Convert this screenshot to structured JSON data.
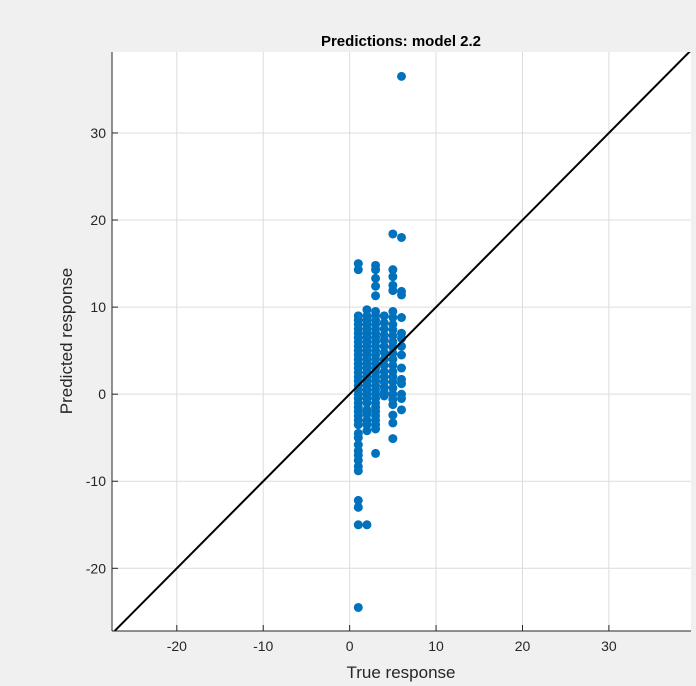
{
  "colors": {
    "figure_bg": "#f0f0f0",
    "axes_bg": "#ffffff",
    "grid": "#dcdcdc",
    "axis": "#262626",
    "marker": "#0072bd",
    "reference_line": "#000000"
  },
  "chart_data": {
    "type": "scatter",
    "title": "Predictions: model 2.2",
    "xlabel": "True response",
    "ylabel": "Predicted response",
    "xlim": [
      -27.5,
      39.5
    ],
    "ylim": [
      -27.2,
      39.3
    ],
    "xticks": [
      -20,
      -10,
      0,
      10,
      20,
      30
    ],
    "yticks": [
      -20,
      -10,
      0,
      10,
      20,
      30
    ],
    "grid": true,
    "reference_line": "y = x",
    "series": [
      {
        "marker_color": "#0072bd",
        "points": [
          [
            1,
            15
          ],
          [
            1,
            14.3
          ],
          [
            1,
            9
          ],
          [
            1,
            8.5
          ],
          [
            1,
            8
          ],
          [
            1,
            7.5
          ],
          [
            1,
            7
          ],
          [
            1,
            6.5
          ],
          [
            1,
            6
          ],
          [
            1,
            5.5
          ],
          [
            1,
            5
          ],
          [
            1,
            4.5
          ],
          [
            1,
            4
          ],
          [
            1,
            3.5
          ],
          [
            1,
            3
          ],
          [
            1,
            2.5
          ],
          [
            1,
            2
          ],
          [
            1,
            1.5
          ],
          [
            1,
            1
          ],
          [
            1,
            0.5
          ],
          [
            1,
            0
          ],
          [
            1,
            -0.5
          ],
          [
            1,
            -1
          ],
          [
            1,
            -1.5
          ],
          [
            1,
            -2
          ],
          [
            1,
            -2.5
          ],
          [
            1,
            -3
          ],
          [
            1,
            -3.5
          ],
          [
            1,
            -4.5
          ],
          [
            1,
            -5
          ],
          [
            1,
            -5.8
          ],
          [
            1,
            -6.5
          ],
          [
            1,
            -7
          ],
          [
            1,
            -7.6
          ],
          [
            1,
            -8.3
          ],
          [
            1,
            -8.8
          ],
          [
            1,
            -12.2
          ],
          [
            1,
            -13
          ],
          [
            1,
            -15
          ],
          [
            1,
            -24.5
          ],
          [
            2,
            9.7
          ],
          [
            2,
            9
          ],
          [
            2,
            8.5
          ],
          [
            2,
            8
          ],
          [
            2,
            7.5
          ],
          [
            2,
            7
          ],
          [
            2,
            6.5
          ],
          [
            2,
            6
          ],
          [
            2,
            5.5
          ],
          [
            2,
            5
          ],
          [
            2,
            4.5
          ],
          [
            2,
            4
          ],
          [
            2,
            3.5
          ],
          [
            2,
            3
          ],
          [
            2,
            2.5
          ],
          [
            2,
            2
          ],
          [
            2,
            1.5
          ],
          [
            2,
            1
          ],
          [
            2,
            0.5
          ],
          [
            2,
            0
          ],
          [
            2,
            -0.5
          ],
          [
            2,
            -1
          ],
          [
            2,
            -1.8
          ],
          [
            2,
            -2.3
          ],
          [
            2,
            -3
          ],
          [
            2,
            -3.5
          ],
          [
            2,
            -4.2
          ],
          [
            2,
            -15
          ],
          [
            3,
            14.8
          ],
          [
            3,
            14.3
          ],
          [
            3,
            13.3
          ],
          [
            3,
            12.4
          ],
          [
            3,
            11.3
          ],
          [
            3,
            9.5
          ],
          [
            3,
            9
          ],
          [
            3,
            8.5
          ],
          [
            3,
            8
          ],
          [
            3,
            7.5
          ],
          [
            3,
            7
          ],
          [
            3,
            6.5
          ],
          [
            3,
            6
          ],
          [
            3,
            5.5
          ],
          [
            3,
            5
          ],
          [
            3,
            4.5
          ],
          [
            3,
            4
          ],
          [
            3,
            3.5
          ],
          [
            3,
            3
          ],
          [
            3,
            2.5
          ],
          [
            3,
            2
          ],
          [
            3,
            1.5
          ],
          [
            3,
            1
          ],
          [
            3,
            0.5
          ],
          [
            3,
            0
          ],
          [
            3,
            -0.5
          ],
          [
            3,
            -1
          ],
          [
            3,
            -1.5
          ],
          [
            3,
            -2
          ],
          [
            3,
            -2.5
          ],
          [
            3,
            -3
          ],
          [
            3,
            -3.5
          ],
          [
            3,
            -4
          ],
          [
            3,
            -6.8
          ],
          [
            4,
            9
          ],
          [
            4,
            8.2
          ],
          [
            4,
            7.5
          ],
          [
            4,
            6.8
          ],
          [
            4,
            6.2
          ],
          [
            4,
            5.5
          ],
          [
            4,
            4.8
          ],
          [
            4,
            4
          ],
          [
            4,
            3.3
          ],
          [
            4,
            2.6
          ],
          [
            4,
            2
          ],
          [
            4,
            1.4
          ],
          [
            4,
            0.8
          ],
          [
            4,
            0.2
          ],
          [
            4,
            -0.2
          ],
          [
            5,
            18.4
          ],
          [
            5,
            14.3
          ],
          [
            5,
            13.5
          ],
          [
            5,
            12.5
          ],
          [
            5,
            11.9
          ],
          [
            5,
            9.5
          ],
          [
            5,
            8.8
          ],
          [
            5,
            8
          ],
          [
            5,
            7.4
          ],
          [
            5,
            6.7
          ],
          [
            5,
            6
          ],
          [
            5,
            5.4
          ],
          [
            5,
            4.7
          ],
          [
            5,
            4
          ],
          [
            5,
            3.3
          ],
          [
            5,
            2.6
          ],
          [
            5,
            2
          ],
          [
            5,
            1.4
          ],
          [
            5,
            0.7
          ],
          [
            5,
            0
          ],
          [
            5,
            -0.6
          ],
          [
            5,
            -1.2
          ],
          [
            5,
            -2.4
          ],
          [
            5,
            -3.3
          ],
          [
            5,
            -5.1
          ],
          [
            6,
            36.5
          ],
          [
            6,
            18
          ],
          [
            6,
            11.8
          ],
          [
            6,
            11.4
          ],
          [
            6,
            8.8
          ],
          [
            6,
            7
          ],
          [
            6,
            6.4
          ],
          [
            6,
            5.5
          ],
          [
            6,
            4.5
          ],
          [
            6,
            3
          ],
          [
            6,
            1.7
          ],
          [
            6,
            1.2
          ],
          [
            6,
            0
          ],
          [
            6,
            -0.5
          ],
          [
            6,
            -1.8
          ]
        ]
      }
    ]
  }
}
